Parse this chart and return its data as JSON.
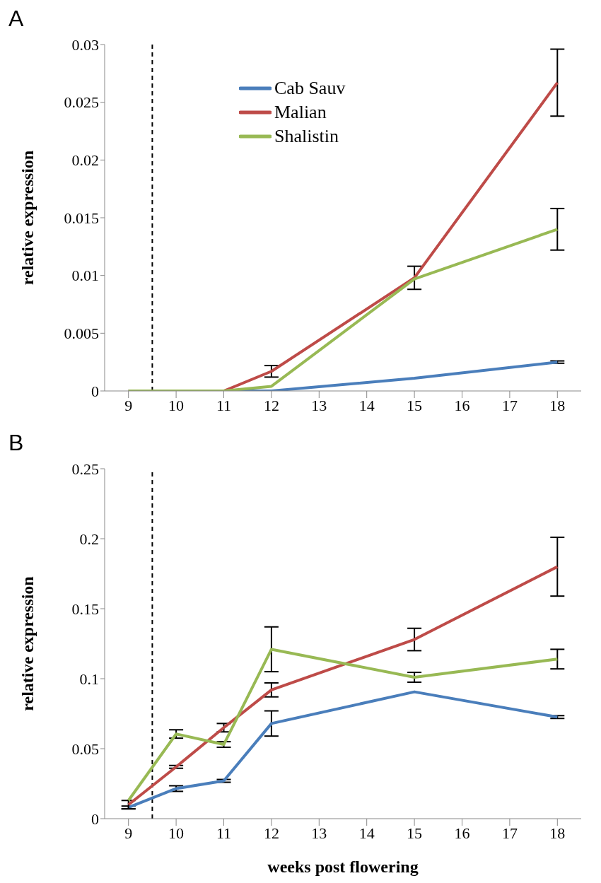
{
  "chart_data": [
    {
      "type": "line",
      "title": "A",
      "ylabel": "relative expression",
      "x": [
        9,
        10,
        11,
        12,
        15,
        18
      ],
      "xlim": [
        8.5,
        18.5
      ],
      "xticks": [
        9,
        10,
        11,
        12,
        13,
        14,
        15,
        16,
        17,
        18
      ],
      "ylim": [
        0,
        0.03
      ],
      "yticks": [
        0,
        0.005,
        0.01,
        0.015,
        0.02,
        0.025,
        0.03
      ],
      "grid": false,
      "legend": "top left",
      "marker": "none",
      "line_style": "solid",
      "ref_lines": [
        {
          "axis": "x",
          "value": 9.5,
          "color": "#000000",
          "line_style": "dashed"
        }
      ],
      "series": [
        {
          "name": "Cab Sauv",
          "color": "#4a7ebb",
          "values": [
            0,
            0,
            0,
            0,
            0.0011,
            0.0025
          ],
          "errors": [
            null,
            null,
            null,
            null,
            null,
            0.0001
          ]
        },
        {
          "name": "Malian",
          "color": "#be4b48",
          "values": [
            0,
            0,
            0,
            0.0017,
            0.0098,
            0.0267
          ],
          "errors": [
            null,
            null,
            null,
            0.0005,
            0.001,
            0.0029
          ]
        },
        {
          "name": "Shalistin",
          "color": "#98b954",
          "values": [
            0,
            0,
            0,
            0.0004,
            0.0097,
            0.014
          ],
          "errors": [
            null,
            null,
            null,
            null,
            null,
            0.0018
          ]
        }
      ]
    },
    {
      "type": "line",
      "title": "B",
      "xlabel": "weeks post flowering",
      "ylabel": "relative expression",
      "x": [
        9,
        10,
        11,
        12,
        15,
        18
      ],
      "xlim": [
        8.5,
        18.5
      ],
      "xticks": [
        9,
        10,
        11,
        12,
        13,
        14,
        15,
        16,
        17,
        18
      ],
      "ylim": [
        0,
        0.25
      ],
      "yticks": [
        0,
        0.05,
        0.1,
        0.15,
        0.2,
        0.25
      ],
      "grid": false,
      "legend": false,
      "marker": "none",
      "line_style": "solid",
      "ref_lines": [
        {
          "axis": "x",
          "value": 9.5,
          "color": "#000000",
          "line_style": "dashed"
        }
      ],
      "series": [
        {
          "color": "#4a7ebb",
          "values": [
            0.008,
            0.0215,
            0.027,
            0.068,
            0.0906,
            0.0726
          ],
          "errors": [
            0.001,
            0.002,
            0.001,
            0.009,
            null,
            0.001
          ]
        },
        {
          "color": "#be4b48",
          "values": [
            0.01,
            0.037,
            0.065,
            0.092,
            0.128,
            0.18
          ],
          "errors": [
            0.003,
            0.001,
            0.003,
            0.005,
            0.008,
            0.021
          ]
        },
        {
          "color": "#98b954",
          "values": [
            0.013,
            0.0605,
            0.053,
            0.121,
            0.101,
            0.114
          ],
          "errors": [
            null,
            0.003,
            0.002,
            0.016,
            0.0035,
            0.007
          ]
        }
      ]
    }
  ]
}
